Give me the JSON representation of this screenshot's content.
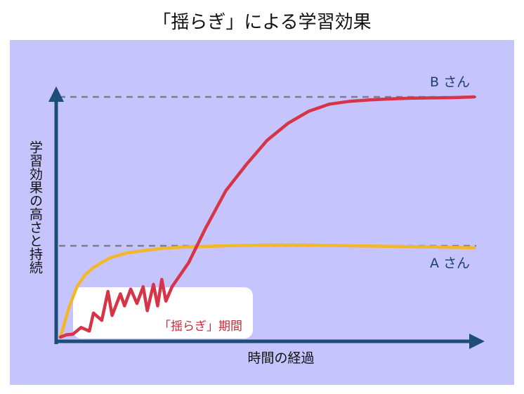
{
  "chart_data": {
    "type": "line",
    "title": "「揺らぎ」による学習効果",
    "xlabel": "時間の経過",
    "ylabel": "学習効果の高さと持続",
    "xlim": [
      0,
      100
    ],
    "ylim": [
      0,
      100
    ],
    "reference_lines": [
      {
        "name": "B さん",
        "y": 100
      },
      {
        "name": "A さん",
        "y": 38
      }
    ],
    "annotation": "「揺らぎ」期間",
    "fluctuation_period": [
      0,
      27
    ],
    "series": [
      {
        "name": "A さん",
        "color": "#f2b72a",
        "x": [
          0,
          2,
          4,
          6,
          8,
          12,
          16,
          20,
          25,
          30,
          40,
          50,
          60,
          70,
          80,
          90,
          100
        ],
        "y": [
          0,
          12,
          21,
          26,
          29,
          33,
          35,
          36,
          37,
          37.5,
          38,
          38.3,
          38.3,
          38,
          37.8,
          37.5,
          37.2
        ]
      },
      {
        "name": "B さん",
        "color": "#d63447",
        "x": [
          0,
          1.5,
          3,
          5,
          7,
          8,
          10,
          11.5,
          12.5,
          14.5,
          15.5,
          17,
          18.5,
          20,
          21,
          22.5,
          23.5,
          24.5,
          25.5,
          27,
          31,
          35,
          40,
          45,
          50,
          55,
          60,
          65,
          70,
          75,
          80,
          85,
          90,
          95,
          100
        ],
        "y": [
          0,
          1,
          1.2,
          4,
          2.5,
          10,
          7,
          19,
          9,
          18,
          13,
          20,
          14,
          21,
          11,
          22,
          13,
          24,
          15,
          21,
          31,
          45,
          61,
          72,
          82,
          89,
          94,
          97,
          98.2,
          98.8,
          99.2,
          99.5,
          99.6,
          99.7,
          100
        ]
      }
    ]
  }
}
